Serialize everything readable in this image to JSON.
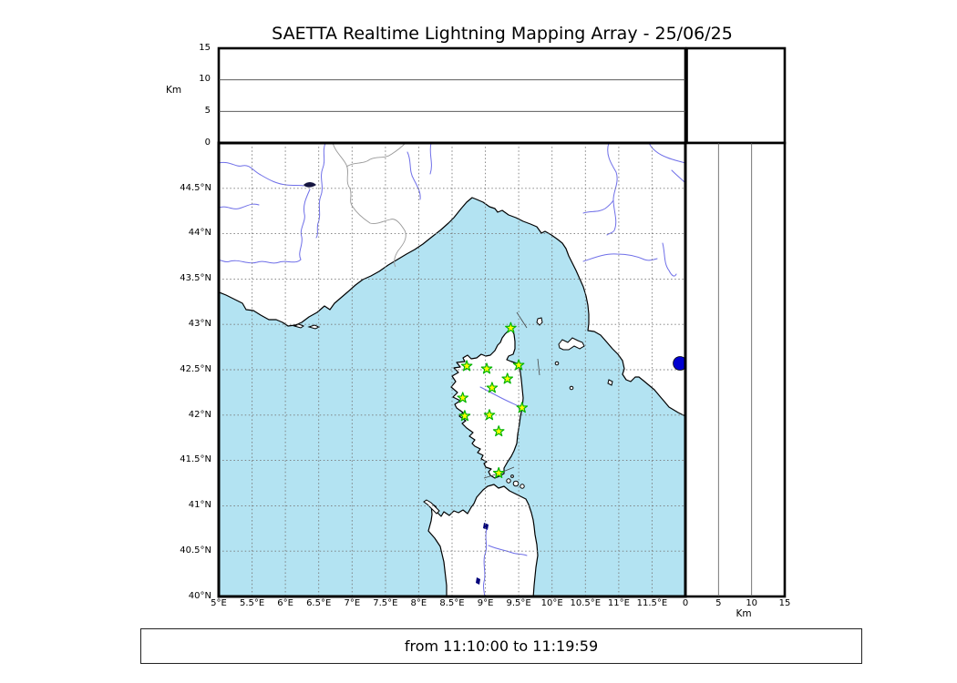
{
  "title": "SAETTA Realtime Lightning Mapping Array - 25/06/25",
  "footer": {
    "time_range": "from 11:10:00 to 11:19:59"
  },
  "altitude_axis": {
    "unit_label": "Km",
    "ticks": [
      "0",
      "5",
      "10",
      "15"
    ]
  },
  "right_altitude_axis": {
    "unit_label": "Km",
    "ticks": [
      "0",
      "5",
      "10",
      "15"
    ]
  },
  "map": {
    "lat_ticks": [
      "44.5°N",
      "44°N",
      "43.5°N",
      "43°N",
      "42.5°N",
      "42°N",
      "41.5°N",
      "41°N",
      "40.5°N",
      "40°N"
    ],
    "lon_ticks": [
      "5°E",
      "5.5°E",
      "6°E",
      "6.5°E",
      "7°E",
      "7.5°E",
      "8°E",
      "8.5°E",
      "9°E",
      "9.5°E",
      "10°E",
      "10.5°E",
      "11°E",
      "11.5°E"
    ],
    "lat_range": [
      40,
      45
    ],
    "lon_range": [
      5,
      12
    ],
    "altitude_range_km": [
      0,
      15
    ],
    "stations": [
      {
        "lon": 9.38,
        "lat": 42.96
      },
      {
        "lon": 8.72,
        "lat": 42.54
      },
      {
        "lon": 9.02,
        "lat": 42.51
      },
      {
        "lon": 9.5,
        "lat": 42.55
      },
      {
        "lon": 9.33,
        "lat": 42.4
      },
      {
        "lon": 9.1,
        "lat": 42.3
      },
      {
        "lon": 8.66,
        "lat": 42.19
      },
      {
        "lon": 9.55,
        "lat": 42.08
      },
      {
        "lon": 9.06,
        "lat": 42.0
      },
      {
        "lon": 8.69,
        "lat": 41.99
      },
      {
        "lon": 9.2,
        "lat": 41.82
      },
      {
        "lon": 9.2,
        "lat": 41.36
      }
    ],
    "sources": [
      {
        "lon": 11.92,
        "lat": 42.57
      }
    ],
    "colors": {
      "sea": "#b3e3f2",
      "land": "#ffffff",
      "coast": "#000000",
      "river": "#6f6fe8",
      "border": "#999999",
      "grid": "#777777",
      "station_fill": "#ffff00",
      "station_edge": "#00b400",
      "source": "#0000d0"
    }
  }
}
